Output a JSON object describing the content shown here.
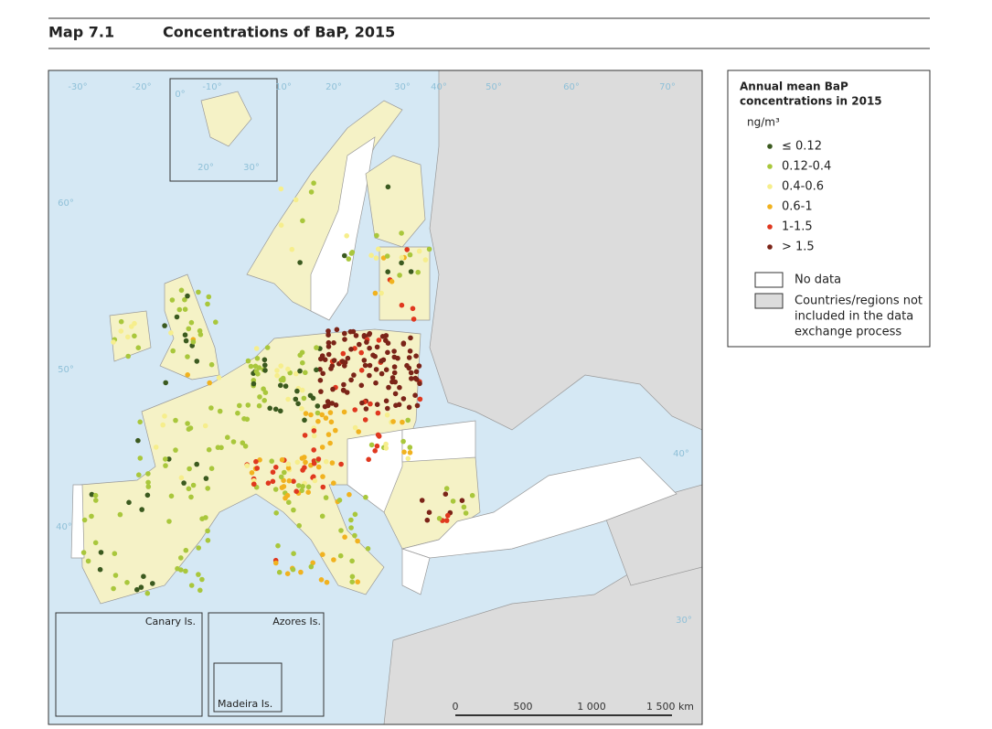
{
  "header": {
    "number": "Map 7.1",
    "title": "Concentrations of BaP, 2015"
  },
  "legend": {
    "title": [
      "Annual mean BaP",
      "concentrations in 2015"
    ],
    "unit": "ng/m³",
    "classes": [
      {
        "label": "≤ 0.12",
        "color": "#3b5a1f"
      },
      {
        "label": "0.12-0.4",
        "color": "#a9c73c"
      },
      {
        "label": "0.4-0.6",
        "color": "#f6ee8c"
      },
      {
        "label": "0.6-1",
        "color": "#f1b21f"
      },
      {
        "label": "1-1.5",
        "color": "#e0381f"
      },
      {
        "label": "> 1.5",
        "color": "#7b2418"
      }
    ],
    "no_data": "No data",
    "not_included": [
      "Countries/regions not",
      "included in the data",
      "exchange process"
    ]
  },
  "map": {
    "graticule_labels": [
      "-30°",
      "-20°",
      "-10°",
      "0°",
      "10°",
      "20°",
      "30°",
      "40°",
      "50°",
      "60°",
      "70°",
      "60°",
      "50°",
      "40°",
      "40°",
      "30°",
      "20°",
      "30°"
    ],
    "insets": [
      "Canary Is.",
      "Azores Is.",
      "Madeira Is."
    ],
    "scale": [
      "0",
      "500",
      "1 000",
      "1 500 km"
    ]
  }
}
